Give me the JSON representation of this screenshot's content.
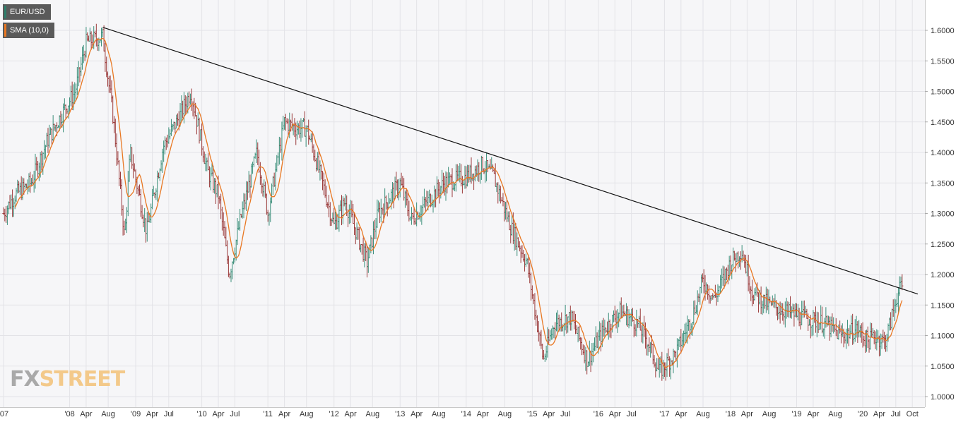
{
  "legend": {
    "symbol": "EUR/USD",
    "indicator": "SMA (10,0)",
    "symbol_color": "#2e7d6b",
    "indicator_color": "#e87722"
  },
  "watermark": {
    "part1": "FX",
    "part2": "STREET"
  },
  "chart_data": {
    "type": "ohlc",
    "symbol": "EUR/USD",
    "indicator": "SMA (10,0)",
    "ylim": [
      1.0,
      1.6
    ],
    "y_ticks": [
      "1.0000",
      "1.0500",
      "1.1000",
      "1.1500",
      "1.2000",
      "1.2500",
      "1.3000",
      "1.3500",
      "1.4000",
      "1.4500",
      "1.5000",
      "1.5500",
      "1.6000"
    ],
    "x_ticks": [
      {
        "label": "'07",
        "date": "2007-01"
      },
      {
        "label": "'08",
        "date": "2008-01"
      },
      {
        "label": "Apr",
        "date": "2008-04"
      },
      {
        "label": "Aug",
        "date": "2008-08"
      },
      {
        "label": "'09",
        "date": "2009-01"
      },
      {
        "label": "Apr",
        "date": "2009-04"
      },
      {
        "label": "Jul",
        "date": "2009-07"
      },
      {
        "label": "'10",
        "date": "2010-01"
      },
      {
        "label": "Apr",
        "date": "2010-04"
      },
      {
        "label": "Jul",
        "date": "2010-07"
      },
      {
        "label": "'11",
        "date": "2011-01"
      },
      {
        "label": "Apr",
        "date": "2011-04"
      },
      {
        "label": "Aug",
        "date": "2011-08"
      },
      {
        "label": "'12",
        "date": "2012-01"
      },
      {
        "label": "Apr",
        "date": "2012-04"
      },
      {
        "label": "Aug",
        "date": "2012-08"
      },
      {
        "label": "'13",
        "date": "2013-01"
      },
      {
        "label": "Apr",
        "date": "2013-04"
      },
      {
        "label": "Aug",
        "date": "2013-08"
      },
      {
        "label": "'14",
        "date": "2014-01"
      },
      {
        "label": "Apr",
        "date": "2014-04"
      },
      {
        "label": "Aug",
        "date": "2014-08"
      },
      {
        "label": "'15",
        "date": "2015-01"
      },
      {
        "label": "Apr",
        "date": "2015-04"
      },
      {
        "label": "Jul",
        "date": "2015-07"
      },
      {
        "label": "'16",
        "date": "2016-01"
      },
      {
        "label": "Apr",
        "date": "2016-04"
      },
      {
        "label": "Jul",
        "date": "2016-07"
      },
      {
        "label": "'17",
        "date": "2017-01"
      },
      {
        "label": "Apr",
        "date": "2017-04"
      },
      {
        "label": "Aug",
        "date": "2017-08"
      },
      {
        "label": "'18",
        "date": "2018-01"
      },
      {
        "label": "Apr",
        "date": "2018-04"
      },
      {
        "label": "Aug",
        "date": "2018-08"
      },
      {
        "label": "'19",
        "date": "2019-01"
      },
      {
        "label": "Apr",
        "date": "2019-04"
      },
      {
        "label": "Aug",
        "date": "2019-08"
      },
      {
        "label": "'20",
        "date": "2020-01"
      },
      {
        "label": "Apr",
        "date": "2020-04"
      },
      {
        "label": "Jul",
        "date": "2020-07"
      },
      {
        "label": "Oct",
        "date": "2020-10"
      }
    ],
    "x_range": [
      "2007-01",
      "2020-11"
    ],
    "trendline": {
      "from": {
        "date": "2008-07",
        "value": 1.605
      },
      "to": {
        "date": "2020-11",
        "value": 1.168
      }
    },
    "price_path": [
      {
        "date": "2007-01",
        "value": 1.3
      },
      {
        "date": "2007-03",
        "value": 1.33
      },
      {
        "date": "2007-06",
        "value": 1.35
      },
      {
        "date": "2007-09",
        "value": 1.42
      },
      {
        "date": "2007-12",
        "value": 1.47
      },
      {
        "date": "2008-02",
        "value": 1.5
      },
      {
        "date": "2008-04",
        "value": 1.58
      },
      {
        "date": "2008-07",
        "value": 1.59
      },
      {
        "date": "2008-09",
        "value": 1.45
      },
      {
        "date": "2008-11",
        "value": 1.26
      },
      {
        "date": "2008-12",
        "value": 1.4
      },
      {
        "date": "2009-03",
        "value": 1.27
      },
      {
        "date": "2009-06",
        "value": 1.41
      },
      {
        "date": "2009-09",
        "value": 1.46
      },
      {
        "date": "2009-11",
        "value": 1.5
      },
      {
        "date": "2010-02",
        "value": 1.37
      },
      {
        "date": "2010-04",
        "value": 1.33
      },
      {
        "date": "2010-06",
        "value": 1.2
      },
      {
        "date": "2010-08",
        "value": 1.29
      },
      {
        "date": "2010-11",
        "value": 1.4
      },
      {
        "date": "2011-01",
        "value": 1.3
      },
      {
        "date": "2011-04",
        "value": 1.45
      },
      {
        "date": "2011-06",
        "value": 1.44
      },
      {
        "date": "2011-08",
        "value": 1.44
      },
      {
        "date": "2011-10",
        "value": 1.38
      },
      {
        "date": "2012-01",
        "value": 1.28
      },
      {
        "date": "2012-03",
        "value": 1.32
      },
      {
        "date": "2012-05",
        "value": 1.27
      },
      {
        "date": "2012-07",
        "value": 1.22
      },
      {
        "date": "2012-09",
        "value": 1.3
      },
      {
        "date": "2013-01",
        "value": 1.35
      },
      {
        "date": "2013-03",
        "value": 1.29
      },
      {
        "date": "2013-06",
        "value": 1.32
      },
      {
        "date": "2013-09",
        "value": 1.35
      },
      {
        "date": "2014-01",
        "value": 1.36
      },
      {
        "date": "2014-04",
        "value": 1.38
      },
      {
        "date": "2014-06",
        "value": 1.36
      },
      {
        "date": "2014-09",
        "value": 1.28
      },
      {
        "date": "2014-12",
        "value": 1.22
      },
      {
        "date": "2015-03",
        "value": 1.06
      },
      {
        "date": "2015-05",
        "value": 1.12
      },
      {
        "date": "2015-08",
        "value": 1.13
      },
      {
        "date": "2015-11",
        "value": 1.06
      },
      {
        "date": "2016-02",
        "value": 1.11
      },
      {
        "date": "2016-05",
        "value": 1.14
      },
      {
        "date": "2016-08",
        "value": 1.12
      },
      {
        "date": "2016-10",
        "value": 1.09
      },
      {
        "date": "2016-12",
        "value": 1.04
      },
      {
        "date": "2017-03",
        "value": 1.07
      },
      {
        "date": "2017-06",
        "value": 1.13
      },
      {
        "date": "2017-08",
        "value": 1.19
      },
      {
        "date": "2017-10",
        "value": 1.16
      },
      {
        "date": "2018-01",
        "value": 1.22
      },
      {
        "date": "2018-03",
        "value": 1.24
      },
      {
        "date": "2018-05",
        "value": 1.17
      },
      {
        "date": "2018-08",
        "value": 1.15
      },
      {
        "date": "2018-11",
        "value": 1.14
      },
      {
        "date": "2019-02",
        "value": 1.13
      },
      {
        "date": "2019-06",
        "value": 1.12
      },
      {
        "date": "2019-09",
        "value": 1.1
      },
      {
        "date": "2019-12",
        "value": 1.11
      },
      {
        "date": "2020-02",
        "value": 1.09
      },
      {
        "date": "2020-03",
        "value": 1.1
      },
      {
        "date": "2020-05",
        "value": 1.09
      },
      {
        "date": "2020-06",
        "value": 1.12
      },
      {
        "date": "2020-07",
        "value": 1.16
      },
      {
        "date": "2020-08",
        "value": 1.18
      }
    ]
  }
}
